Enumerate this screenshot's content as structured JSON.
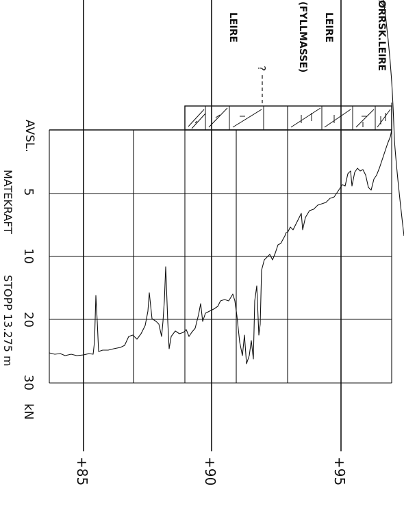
{
  "axis_labels": {
    "depth_axis": "AVSL.",
    "force_axis": "MATEKRAFT",
    "stop_note": "STOPP 13.275 m",
    "force_unit": "kN"
  },
  "force_ticks": [
    "5",
    "10",
    "20",
    "30"
  ],
  "elevation_ticks": [
    "+85",
    "+90",
    "+95"
  ],
  "soil_labels": {
    "leire": "LEIRE",
    "leire_fyllmasse_1": "LEIRE",
    "leire_fyllmasse_2": "(FYLLMASSE)",
    "torrskorpe": "ØRRSK.LEIRE",
    "uncertain_boundary": "?"
  },
  "colors": {
    "ink": "#111111",
    "paper": "#ffffff"
  }
}
